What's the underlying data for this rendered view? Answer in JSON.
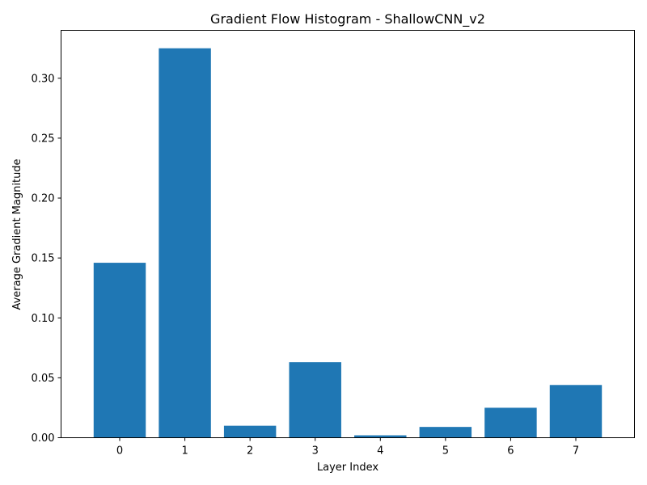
{
  "chart_data": {
    "type": "bar",
    "title": "Gradient Flow Histogram - ShallowCNN_v2",
    "xlabel": "Layer Index",
    "ylabel": "Average Gradient Magnitude",
    "categories": [
      "0",
      "1",
      "2",
      "3",
      "4",
      "5",
      "6",
      "7"
    ],
    "values": [
      0.146,
      0.325,
      0.01,
      0.063,
      0.002,
      0.009,
      0.025,
      0.044
    ],
    "xlim": [
      -0.9,
      7.9
    ],
    "ylim": [
      0,
      0.34
    ],
    "yticks": [
      0.0,
      0.05,
      0.1,
      0.15,
      0.2,
      0.25,
      0.3
    ],
    "ytick_labels": [
      "0.00",
      "0.05",
      "0.10",
      "0.15",
      "0.20",
      "0.25",
      "0.30"
    ],
    "bar_color": "#1f77b4",
    "grid": false,
    "legend": "none"
  }
}
